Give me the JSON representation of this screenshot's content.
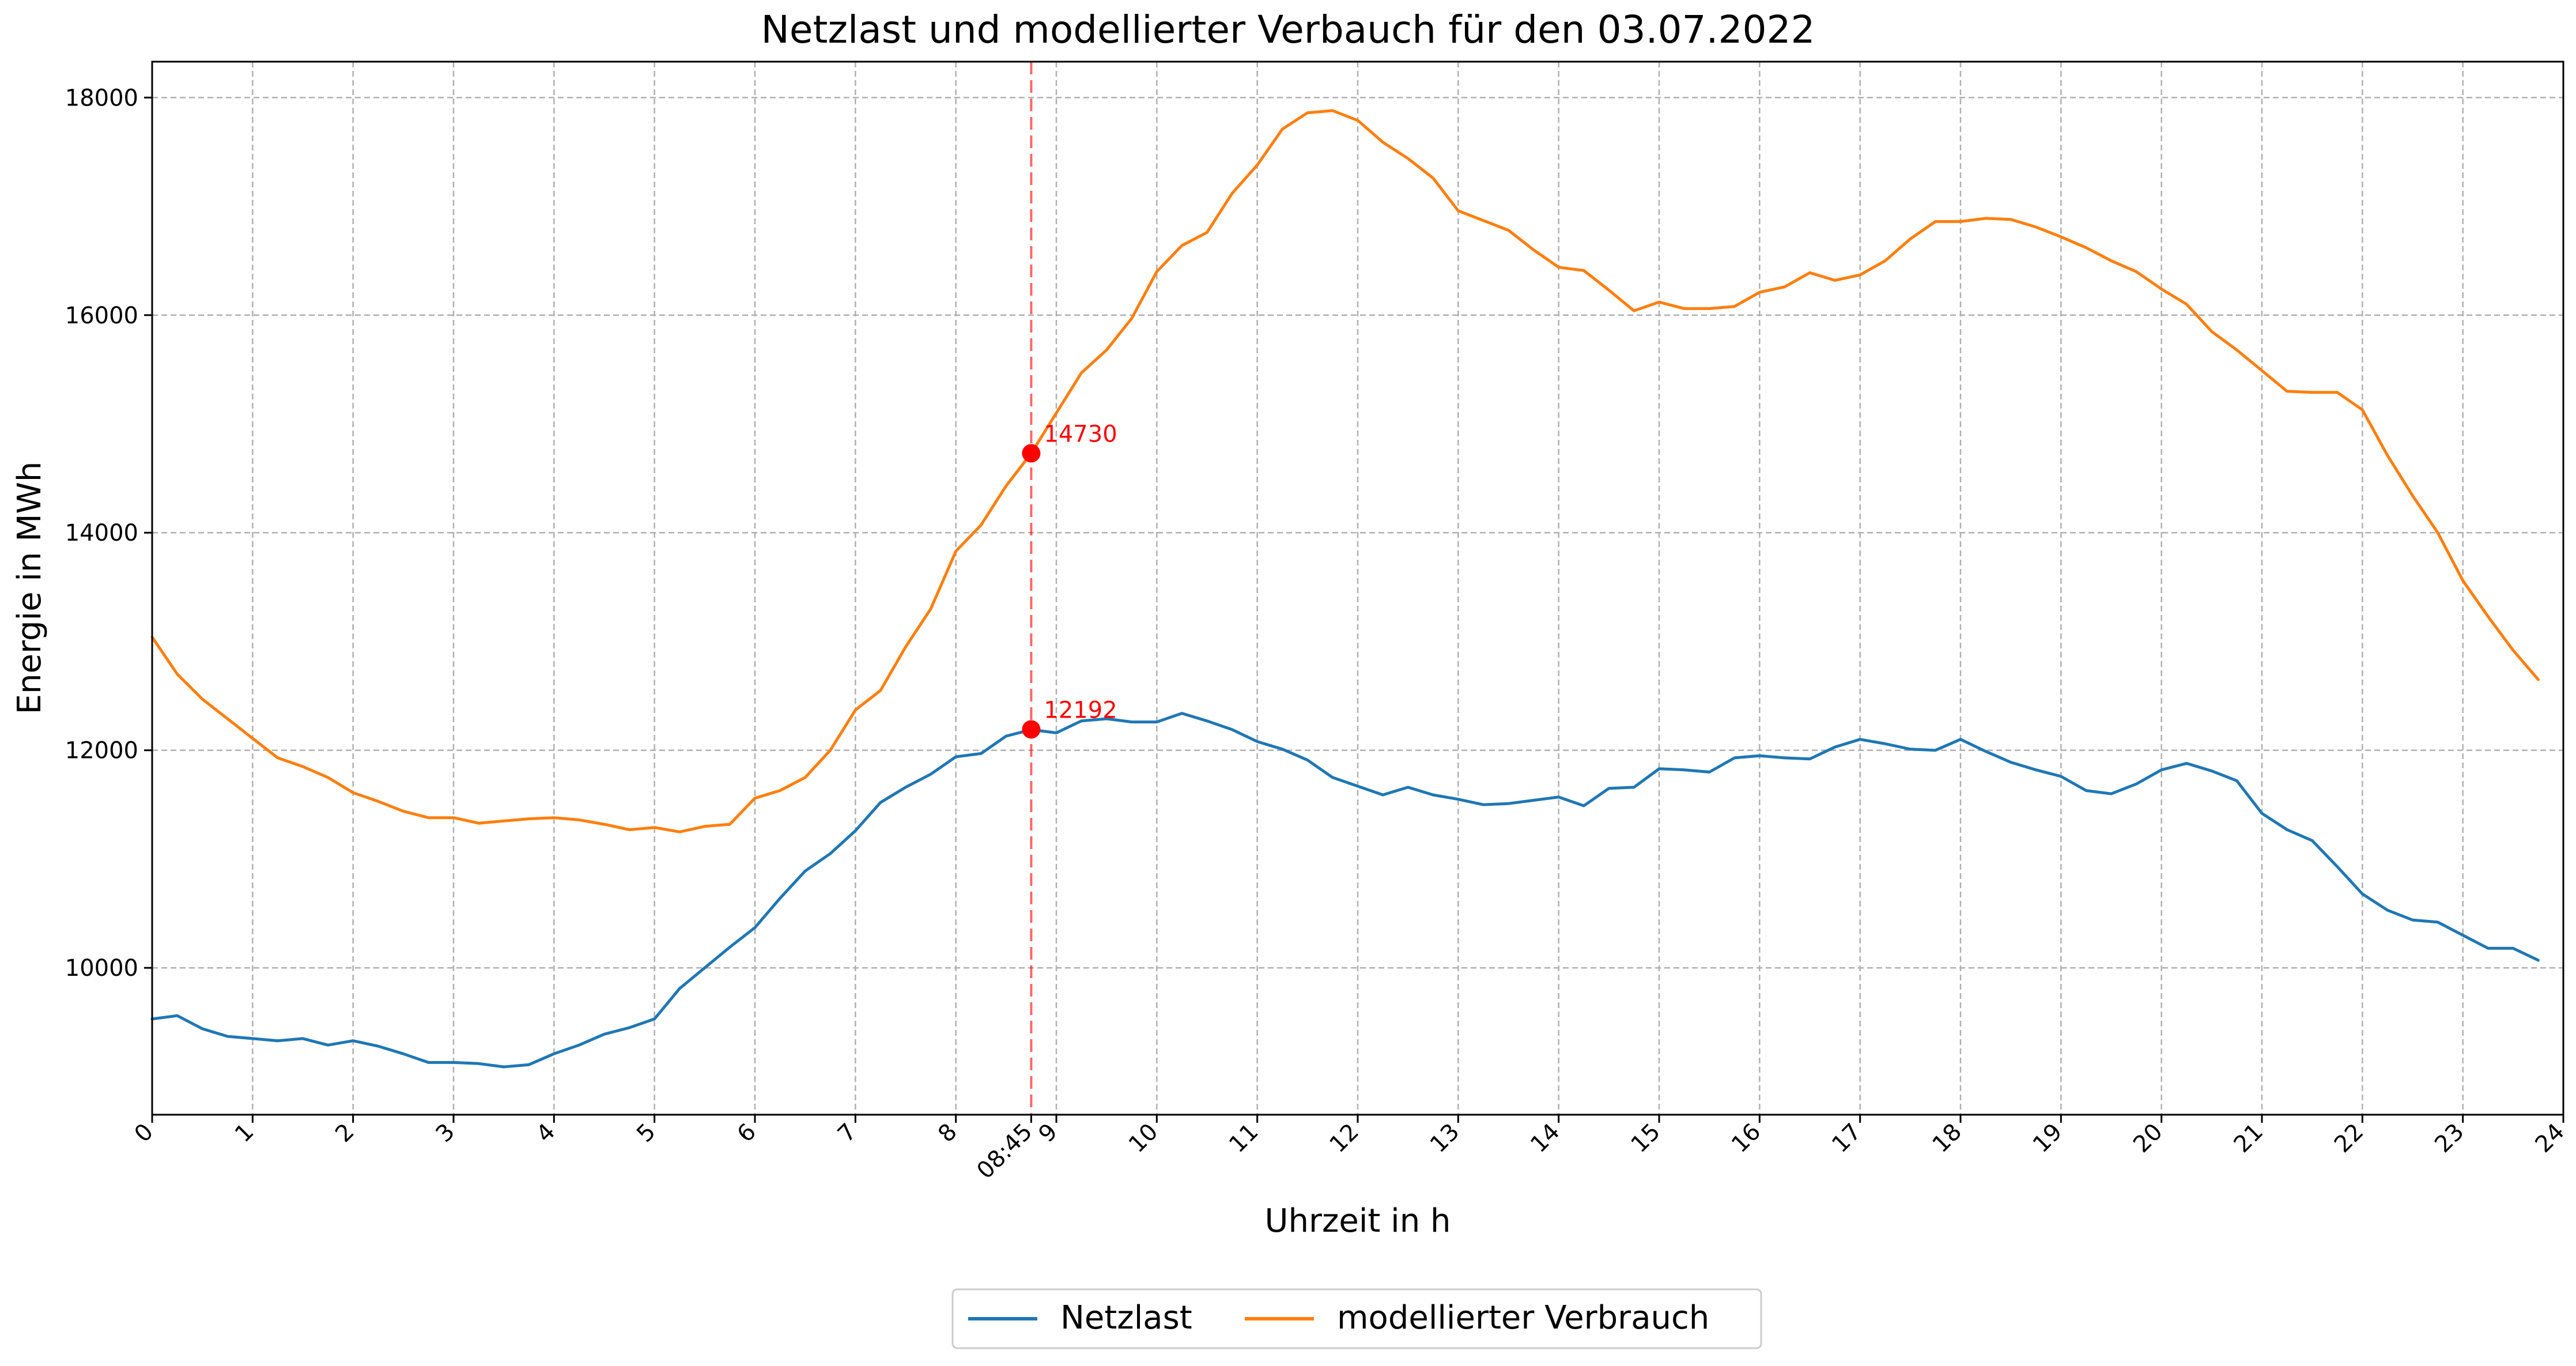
{
  "chart_data": {
    "type": "line",
    "title": "Netzlast und modellierter Verbauch für den 03.07.2022",
    "xlabel": "Uhrzeit in h",
    "ylabel": "Energie in MWh",
    "xlim": [
      0,
      24
    ],
    "ylim": [
      8650,
      18330
    ],
    "grid": true,
    "legend_position": "bottom-center",
    "x_ticks": [
      {
        "value": 0,
        "label": "0"
      },
      {
        "value": 1,
        "label": "1"
      },
      {
        "value": 2,
        "label": "2"
      },
      {
        "value": 3,
        "label": "3"
      },
      {
        "value": 4,
        "label": "4"
      },
      {
        "value": 5,
        "label": "5"
      },
      {
        "value": 6,
        "label": "6"
      },
      {
        "value": 7,
        "label": "7"
      },
      {
        "value": 8,
        "label": "8"
      },
      {
        "value": 8.75,
        "label": "08:45"
      },
      {
        "value": 9,
        "label": "9"
      },
      {
        "value": 10,
        "label": "10"
      },
      {
        "value": 11,
        "label": "11"
      },
      {
        "value": 12,
        "label": "12"
      },
      {
        "value": 13,
        "label": "13"
      },
      {
        "value": 14,
        "label": "14"
      },
      {
        "value": 15,
        "label": "15"
      },
      {
        "value": 16,
        "label": "16"
      },
      {
        "value": 17,
        "label": "17"
      },
      {
        "value": 18,
        "label": "18"
      },
      {
        "value": 19,
        "label": "19"
      },
      {
        "value": 20,
        "label": "20"
      },
      {
        "value": 21,
        "label": "21"
      },
      {
        "value": 22,
        "label": "22"
      },
      {
        "value": 23,
        "label": "23"
      },
      {
        "value": 24,
        "label": "24"
      }
    ],
    "y_ticks": [
      {
        "value": 10000,
        "label": "10000"
      },
      {
        "value": 12000,
        "label": "12000"
      },
      {
        "value": 14000,
        "label": "14000"
      },
      {
        "value": 16000,
        "label": "16000"
      },
      {
        "value": 18000,
        "label": "18000"
      }
    ],
    "x_start": 0,
    "x_step": 0.25,
    "series": [
      {
        "name": "Netzlast",
        "color": "#1f77b4",
        "values": [
          9530,
          9560,
          9440,
          9370,
          9350,
          9330,
          9350,
          9290,
          9330,
          9280,
          9210,
          9130,
          9130,
          9120,
          9090,
          9110,
          9210,
          9290,
          9390,
          9450,
          9530,
          9810,
          10000,
          10190,
          10370,
          10640,
          10890,
          11050,
          11260,
          11520,
          11660,
          11780,
          11940,
          11970,
          12130,
          12190,
          12160,
          12270,
          12290,
          12260,
          12260,
          12340,
          12270,
          12190,
          12080,
          12010,
          11910,
          11750,
          11670,
          11590,
          11660,
          11590,
          11550,
          11500,
          11510,
          11540,
          11570,
          11490,
          11650,
          11660,
          11830,
          11820,
          11800,
          11930,
          11950,
          11930,
          11920,
          12030,
          12100,
          12060,
          12010,
          12000,
          12100,
          11990,
          11890,
          11820,
          11760,
          11630,
          11600,
          11690,
          11820,
          11880,
          11810,
          11720,
          11420,
          11270,
          11170,
          10930,
          10680,
          10530,
          10440,
          10420,
          10300,
          10180,
          10180,
          10070
        ]
      },
      {
        "name": "modellierter Verbrauch",
        "color": "#ff7f0e",
        "values": [
          13040,
          12700,
          12470,
          12290,
          12110,
          11930,
          11850,
          11750,
          11610,
          11530,
          11440,
          11380,
          11380,
          11330,
          11350,
          11370,
          11380,
          11360,
          11320,
          11270,
          11290,
          11250,
          11300,
          11320,
          11560,
          11630,
          11750,
          12000,
          12370,
          12550,
          12950,
          13300,
          13830,
          14070,
          14430,
          14730,
          15100,
          15470,
          15680,
          15970,
          16400,
          16640,
          16760,
          17120,
          17380,
          17710,
          17860,
          17880,
          17790,
          17590,
          17440,
          17260,
          16960,
          16870,
          16780,
          16600,
          16440,
          16410,
          16230,
          16040,
          16120,
          16060,
          16060,
          16080,
          16210,
          16260,
          16390,
          16320,
          16370,
          16500,
          16700,
          16860,
          16860,
          16890,
          16880,
          16810,
          16720,
          16620,
          16500,
          16400,
          16240,
          16100,
          15850,
          15680,
          15490,
          15300,
          15290,
          15290,
          15130,
          14710,
          14340,
          14000,
          13560,
          13230,
          12920,
          12650
        ]
      }
    ],
    "marker": {
      "x": 8.75,
      "points": [
        {
          "series": "modellierter Verbrauch",
          "value": 14730,
          "label": "14730"
        },
        {
          "series": "Netzlast",
          "value": 12192,
          "label": "12192"
        }
      ],
      "color": "#ff0000"
    },
    "legend": [
      "Netzlast",
      "modellierter Verbrauch"
    ]
  }
}
